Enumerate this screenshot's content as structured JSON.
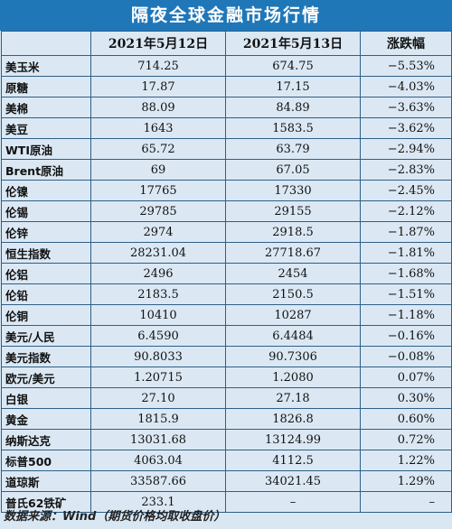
{
  "title": "隔夜全球金融市场行情",
  "headers": [
    "",
    "2021年5月12日",
    "2021年5月13日",
    "涨跌幅"
  ],
  "rows": [
    {
      "name": "美玉米",
      "d12": "714.25",
      "d13": "674.75",
      "chg": "−5.53%"
    },
    {
      "name": "原糖",
      "d12": "17.87",
      "d13": "17.15",
      "chg": "−4.03%"
    },
    {
      "name": "美棉",
      "d12": "88.09",
      "d13": "84.89",
      "chg": "−3.63%"
    },
    {
      "name": "美豆",
      "d12": "1643",
      "d13": "1583.5",
      "chg": "−3.62%"
    },
    {
      "name": "WTI原油",
      "d12": "65.72",
      "d13": "63.79",
      "chg": "−2.94%"
    },
    {
      "name": "Brent原油",
      "d12": "69",
      "d13": "67.05",
      "chg": "−2.83%"
    },
    {
      "name": "伦镍",
      "d12": "17765",
      "d13": "17330",
      "chg": "−2.45%"
    },
    {
      "name": "伦锡",
      "d12": "29785",
      "d13": "29155",
      "chg": "−2.12%"
    },
    {
      "name": "伦锌",
      "d12": "2974",
      "d13": "2918.5",
      "chg": "−1.87%"
    },
    {
      "name": "恒生指数",
      "d12": "28231.04",
      "d13": "27718.67",
      "chg": "−1.81%"
    },
    {
      "name": "伦铝",
      "d12": "2496",
      "d13": "2454",
      "chg": "−1.68%"
    },
    {
      "name": "伦铅",
      "d12": "2183.5",
      "d13": "2150.5",
      "chg": "−1.51%"
    },
    {
      "name": "伦铜",
      "d12": "10410",
      "d13": "10287",
      "chg": "−1.18%"
    },
    {
      "name": "美元/人民",
      "d12": "6.4590",
      "d13": "6.4484",
      "chg": "−0.16%"
    },
    {
      "name": "美元指数",
      "d12": "90.8033",
      "d13": "90.7306",
      "chg": "−0.08%"
    },
    {
      "name": "欧元/美元",
      "d12": "1.20715",
      "d13": "1.2080",
      "chg": "0.07%"
    },
    {
      "name": "白银",
      "d12": "27.10",
      "d13": "27.18",
      "chg": "0.30%"
    },
    {
      "name": "黄金",
      "d12": "1815.9",
      "d13": "1826.8",
      "chg": "0.60%"
    },
    {
      "name": "纳斯达克",
      "d12": "13031.68",
      "d13": "13124.99",
      "chg": "0.72%"
    },
    {
      "name": "标普500",
      "d12": "4063.04",
      "d13": "4112.5",
      "chg": "1.22%"
    },
    {
      "name": "道琼斯",
      "d12": "33587.66",
      "d13": "34021.45",
      "chg": "1.29%"
    },
    {
      "name": "普氏62铁矿",
      "d12": "233.1",
      "d13": "–",
      "chg": "–"
    }
  ],
  "footer": "数据来源：Wind（期货价格均取收盘价）",
  "colors": {
    "title_bg": "#1f77b8",
    "table_bg": "#dbe8f4",
    "border": "#2f5f86"
  }
}
